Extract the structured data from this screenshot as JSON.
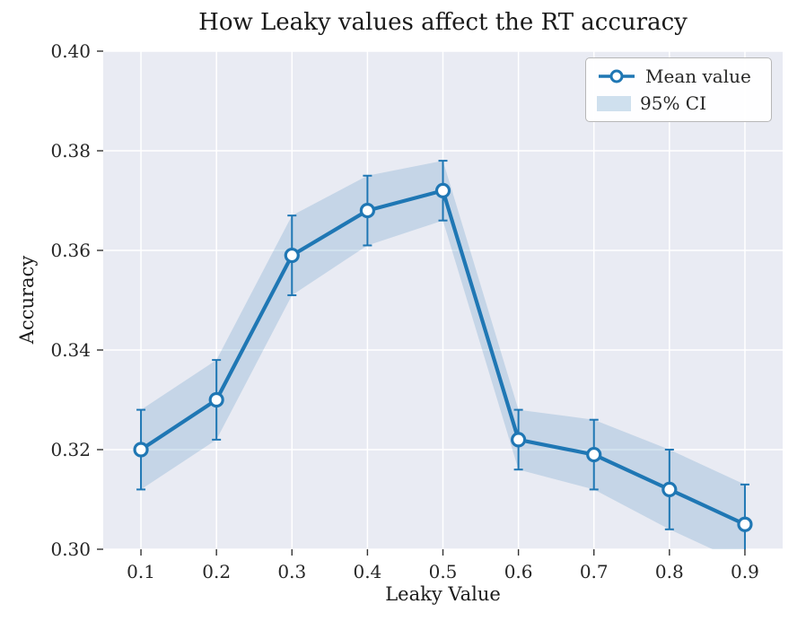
{
  "chart_data": {
    "type": "line",
    "title": "How Leaky values affect the RT accuracy",
    "xlabel": "Leaky Value",
    "ylabel": "Accuracy",
    "x": [
      0.1,
      0.2,
      0.3,
      0.4,
      0.5,
      0.6,
      0.7,
      0.8,
      0.9
    ],
    "series": [
      {
        "name": "Mean value",
        "values": [
          0.32,
          0.33,
          0.359,
          0.368,
          0.372,
          0.322,
          0.319,
          0.312,
          0.305
        ],
        "ci95": [
          0.008,
          0.008,
          0.008,
          0.007,
          0.006,
          0.006,
          0.007,
          0.008,
          0.008
        ]
      }
    ],
    "legend": [
      "Mean value",
      "95% CI"
    ],
    "legend_position": "upper right",
    "xlim": [
      0.05,
      0.95
    ],
    "ylim": [
      0.3,
      0.4
    ],
    "xticks": [
      0.1,
      0.2,
      0.3,
      0.4,
      0.5,
      0.6,
      0.7,
      0.8,
      0.9
    ],
    "xtick_labels": [
      "0.1",
      "0.2",
      "0.3",
      "0.4",
      "0.5",
      "0.6",
      "0.7",
      "0.8",
      "0.9"
    ],
    "yticks": [
      0.3,
      0.32,
      0.34,
      0.36,
      0.38,
      0.4
    ],
    "ytick_labels": [
      "0.30",
      "0.32",
      "0.34",
      "0.36",
      "0.38",
      "0.40"
    ],
    "grid": true,
    "colors": {
      "line": "#1f77b4",
      "marker_fill": "#ffffff",
      "band_fill": "#1f77b4",
      "plot_bg": "#e9ebf3",
      "fig_bg": "#ffffff",
      "tick_text": "#262626",
      "grid_line": "#ffffff"
    }
  }
}
